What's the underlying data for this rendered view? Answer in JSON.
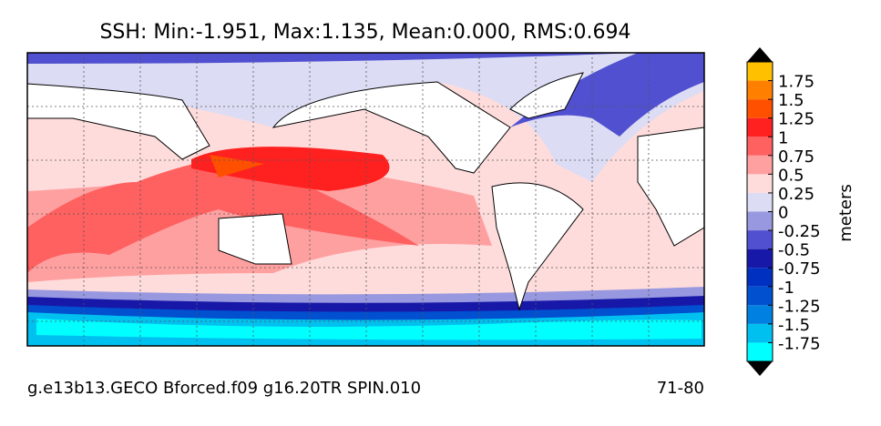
{
  "title": "SSH: Min:-1.951, Max:1.135, Mean:0.000, RMS:0.694",
  "footer": {
    "left": "g.e13b13.GECO Bforced.f09 g16.20TR SPIN.010",
    "right": "71-80"
  },
  "colorbar": {
    "label": "meters",
    "clim": [
      -2,
      2
    ],
    "ticks": [
      1.75,
      1.5,
      1.25,
      1,
      0.75,
      0.5,
      0.25,
      0,
      -0.25,
      -0.5,
      -0.75,
      -1,
      -1.25,
      -1.5,
      -1.75
    ],
    "colors": [
      "#00ffff",
      "#00c0f0",
      "#0080e0",
      "#0050d0",
      "#0030c0",
      "#1818a8",
      "#5050d0",
      "#9898e0",
      "#dcdcf4",
      "#ffdcdc",
      "#ffa0a0",
      "#ff6060",
      "#ff2020",
      "#ff5000",
      "#ff8000",
      "#ffc000"
    ],
    "over_color": "#000000",
    "under_color": "#000000"
  }
}
